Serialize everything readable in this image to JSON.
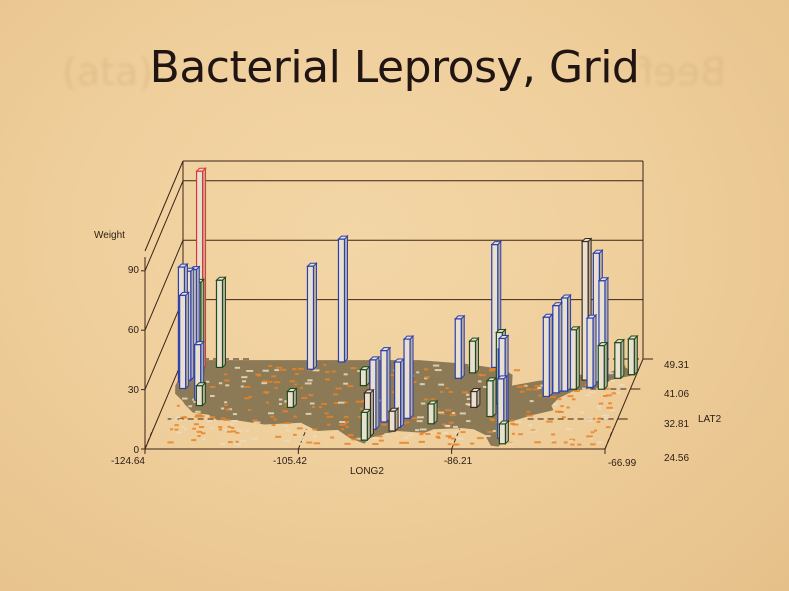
{
  "slide": {
    "title": "Bacterial Leprosy, Grid",
    "ghost_text_left": "(ata)",
    "ghost_text_right": "Beef"
  },
  "chart_data": {
    "type": "bar3d",
    "title": "Bacterial Leprosy, Grid",
    "zlabel": "Weight",
    "xlabel": "LONG2",
    "ylabel": "LAT2",
    "z_ticks": [
      "0",
      "30",
      "60",
      "90"
    ],
    "x_ticks": [
      "-124.64",
      "-105.42",
      "-86.21",
      "-66.99"
    ],
    "y_ticks": [
      "49.31",
      "41.06",
      "32.81",
      "24.56"
    ],
    "zlim": [
      0,
      100
    ],
    "xlim": [
      -124.64,
      -66.99
    ],
    "ylim": [
      24.56,
      49.31
    ],
    "grid": true,
    "colors": {
      "map_fill": "#8b7a55",
      "map_speckle": "#e8822a",
      "map_light": "#e9dcc0",
      "bar_fill": "#e9e0d0",
      "outline_blue": "#2a3fb0",
      "outline_green": "#1e4a1e",
      "outline_red": "#e0352c",
      "outline_dark": "#3a2a20",
      "grid": "#3a2418"
    },
    "bars": [
      {
        "long": -122.4,
        "lat": 46.5,
        "weight": 100,
        "color": "red"
      },
      {
        "long": -124.0,
        "lat": 43.0,
        "weight": 58,
        "color": "blue"
      },
      {
        "long": -123.3,
        "lat": 43.5,
        "weight": 55,
        "color": "blue"
      },
      {
        "long": -122.8,
        "lat": 44.5,
        "weight": 54,
        "color": "blue"
      },
      {
        "long": -123.5,
        "lat": 41.2,
        "weight": 47,
        "color": "blue"
      },
      {
        "long": -122.3,
        "lat": 44.8,
        "weight": 47,
        "color": "green"
      },
      {
        "long": -120.0,
        "lat": 47.0,
        "weight": 44,
        "color": "green"
      },
      {
        "long": -121.0,
        "lat": 38.0,
        "weight": 28,
        "color": "blue"
      },
      {
        "long": -120.5,
        "lat": 36.5,
        "weight": 10,
        "color": "green"
      },
      {
        "long": -108.5,
        "lat": 46.5,
        "weight": 52,
        "color": "blue"
      },
      {
        "long": -105.0,
        "lat": 48.5,
        "weight": 62,
        "color": "blue"
      },
      {
        "long": -109.0,
        "lat": 36.0,
        "weight": 8,
        "color": "green"
      },
      {
        "long": -101.0,
        "lat": 42.0,
        "weight": 8,
        "color": "green"
      },
      {
        "long": -97.5,
        "lat": 30.0,
        "weight": 35,
        "color": "blue"
      },
      {
        "long": -97.8,
        "lat": 28.0,
        "weight": 22,
        "color": "dark"
      },
      {
        "long": -98.0,
        "lat": 27.0,
        "weight": 14,
        "color": "green"
      },
      {
        "long": -96.5,
        "lat": 32.0,
        "weight": 36,
        "color": "blue"
      },
      {
        "long": -94.5,
        "lat": 30.5,
        "weight": 33,
        "color": "blue"
      },
      {
        "long": -93.8,
        "lat": 33.0,
        "weight": 40,
        "color": "blue"
      },
      {
        "long": -95.0,
        "lat": 29.5,
        "weight": 10,
        "color": "dark"
      },
      {
        "long": -90.5,
        "lat": 31.5,
        "weight": 10,
        "color": "green"
      },
      {
        "long": -89.5,
        "lat": 44.0,
        "weight": 30,
        "color": "blue"
      },
      {
        "long": -88.0,
        "lat": 45.5,
        "weight": 16,
        "color": "green"
      },
      {
        "long": -85.5,
        "lat": 47.0,
        "weight": 62,
        "color": "blue"
      },
      {
        "long": -86.0,
        "lat": 36.0,
        "weight": 8,
        "color": "dark"
      },
      {
        "long": -84.0,
        "lat": 42.5,
        "weight": 20,
        "color": "green"
      },
      {
        "long": -83.0,
        "lat": 37.0,
        "weight": 36,
        "color": "green"
      },
      {
        "long": -82.0,
        "lat": 33.0,
        "weight": 35,
        "color": "blue"
      },
      {
        "long": -81.0,
        "lat": 27.5,
        "weight": 30,
        "color": "blue"
      },
      {
        "long": -81.5,
        "lat": 31.0,
        "weight": 44,
        "color": "blue"
      },
      {
        "long": -80.5,
        "lat": 26.0,
        "weight": 10,
        "color": "green"
      },
      {
        "long": -83.5,
        "lat": 33.5,
        "weight": 18,
        "color": "green"
      },
      {
        "long": -77.5,
        "lat": 39.0,
        "weight": 40,
        "color": "blue"
      },
      {
        "long": -76.5,
        "lat": 40.0,
        "weight": 44,
        "color": "blue"
      },
      {
        "long": -75.5,
        "lat": 40.5,
        "weight": 47,
        "color": "blue"
      },
      {
        "long": -74.5,
        "lat": 41.0,
        "weight": 30,
        "color": "green"
      },
      {
        "long": -73.5,
        "lat": 43.5,
        "weight": 70,
        "color": "dark"
      },
      {
        "long": -72.0,
        "lat": 43.0,
        "weight": 65,
        "color": "blue"
      },
      {
        "long": -71.2,
        "lat": 42.5,
        "weight": 52,
        "color": "blue"
      },
      {
        "long": -72.5,
        "lat": 41.5,
        "weight": 35,
        "color": "blue"
      },
      {
        "long": -71.0,
        "lat": 41.0,
        "weight": 22,
        "color": "green"
      },
      {
        "long": -69.5,
        "lat": 44.0,
        "weight": 18,
        "color": "green"
      },
      {
        "long": -68.0,
        "lat": 45.0,
        "weight": 18,
        "color": "green"
      }
    ]
  }
}
